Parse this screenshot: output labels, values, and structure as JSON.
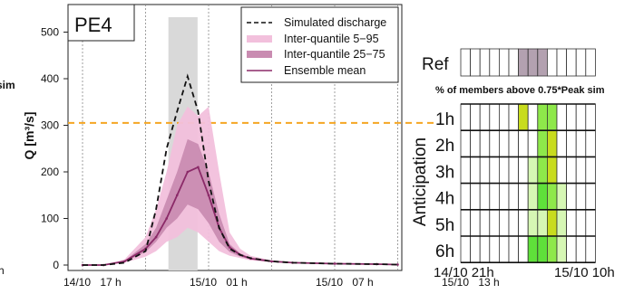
{
  "left_chart": {
    "panel_label": "PE4",
    "ylabel": "Q [m³/s]",
    "xtick_labels": [
      "14/10",
      "17 h",
      "15/10",
      "01 h",
      "15/10",
      "07 h",
      "15/10",
      "13 h"
    ],
    "ytick_labels": [
      "0",
      "100",
      "200",
      "300",
      "400",
      "500"
    ],
    "legend": {
      "simulated": "Simulated discharge",
      "iq_5_95": "Inter-quantile 5−95",
      "iq_25_75": "Inter-quantile 25−75",
      "mean": "Ensemble mean"
    },
    "cut_text_1": "sim",
    "cut_text_2": "h"
  },
  "right_chart": {
    "ref_label": "Ref",
    "subtitle": "% of members above 0.75*Peak sim",
    "ylabel": "Anticipation",
    "row_labels": [
      "1h",
      "2h",
      "3h",
      "4h",
      "5h",
      "6h"
    ],
    "xtick_left": "14/10 21h",
    "xtick_right": "15/10 10h"
  },
  "colors": {
    "threshold": "#f5a623",
    "shade": "#d9d9d9",
    "iq_5_95": "#f2c0dc",
    "iq_25_75": "#c98cb1",
    "mean": "#8b2a68",
    "ref_fill": "#b3a1b0"
  },
  "chart_data": [
    {
      "type": "line",
      "x": [
        "14/10 17h",
        "14/10 19h",
        "14/10 21h",
        "14/10 23h",
        "15/10 00h",
        "15/10 01h",
        "15/10 02h",
        "15/10 03h",
        "15/10 04h",
        "15/10 05h",
        "15/10 06h",
        "15/10 07h",
        "15/10 08h",
        "15/10 09h",
        "15/10 11h",
        "15/10 13h",
        "15/10 17h",
        "15/10 21h",
        "15/10 23h"
      ],
      "xlim": [
        "14/10 17h",
        "15/10 23h"
      ],
      "ylim": [
        0,
        530
      ],
      "ylabel": "Q [m³/s]",
      "threshold_y": 305,
      "shaded_window": [
        "15/10 01h",
        "15/10 03h"
      ],
      "series": [
        {
          "name": "Simulated discharge",
          "values": [
            0,
            0,
            5,
            30,
            120,
            250,
            330,
            405,
            330,
            180,
            80,
            35,
            22,
            15,
            8,
            5,
            3,
            2,
            1
          ]
        },
        {
          "name": "Inter-quantile 5−95",
          "lower": [
            0,
            0,
            5,
            18,
            30,
            50,
            60,
            80,
            70,
            50,
            30,
            20,
            15,
            10,
            6,
            4,
            3,
            2,
            1
          ],
          "upper": [
            0,
            0,
            12,
            60,
            120,
            200,
            300,
            340,
            320,
            340,
            200,
            70,
            35,
            20,
            10,
            6,
            4,
            3,
            1
          ]
        },
        {
          "name": "Inter-quantile 25−75",
          "lower": [
            0,
            0,
            7,
            28,
            50,
            80,
            100,
            130,
            120,
            90,
            50,
            28,
            18,
            12,
            7,
            5,
            3,
            2,
            1
          ],
          "upper": [
            0,
            0,
            9,
            45,
            80,
            140,
            200,
            270,
            260,
            200,
            110,
            45,
            25,
            15,
            8,
            5,
            3,
            2,
            1
          ]
        },
        {
          "name": "Ensemble mean",
          "values": [
            0,
            0,
            8,
            35,
            60,
            100,
            150,
            200,
            210,
            150,
            80,
            38,
            22,
            14,
            8,
            5,
            3,
            2,
            1
          ]
        }
      ]
    },
    {
      "type": "heatmap",
      "ylabel": "Anticipation",
      "columns": 14,
      "rows": [
        "Ref",
        "1h",
        "2h",
        "3h",
        "4h",
        "5h",
        "6h"
      ],
      "values": [
        [
          "",
          "",
          "",
          "",
          "",
          "",
          "ref",
          "ref",
          "ref",
          "",
          "",
          "",
          "",
          ""
        ],
        [
          "",
          "",
          "",
          "",
          "",
          "",
          "olive",
          "",
          "lgreen",
          "lgreen",
          "",
          "",
          "",
          ""
        ],
        [
          "",
          "",
          "",
          "",
          "",
          "",
          "",
          "",
          "lgreen",
          "olive",
          "",
          "",
          "",
          ""
        ],
        [
          "",
          "",
          "",
          "",
          "",
          "",
          "",
          "pale",
          "lgreen",
          "olive",
          "",
          "",
          "",
          ""
        ],
        [
          "",
          "",
          "",
          "",
          "",
          "",
          "",
          "pale",
          "bgreen",
          "lgreen",
          "pale",
          "",
          "",
          ""
        ],
        [
          "",
          "",
          "",
          "",
          "",
          "",
          "",
          "pale",
          "pale",
          "olive",
          "pale",
          "",
          "",
          ""
        ],
        [
          "",
          "",
          "",
          "",
          "",
          "",
          "",
          "bgreen",
          "bgreen",
          "lgreen",
          "pale",
          "",
          "",
          ""
        ]
      ],
      "cell_colors": {
        "ref": "#b3a1b0",
        "olive": "#c8dc1e",
        "lgreen": "#8ee84a",
        "bgreen": "#5fe03a",
        "pale": "#d6f7b4"
      }
    }
  ]
}
